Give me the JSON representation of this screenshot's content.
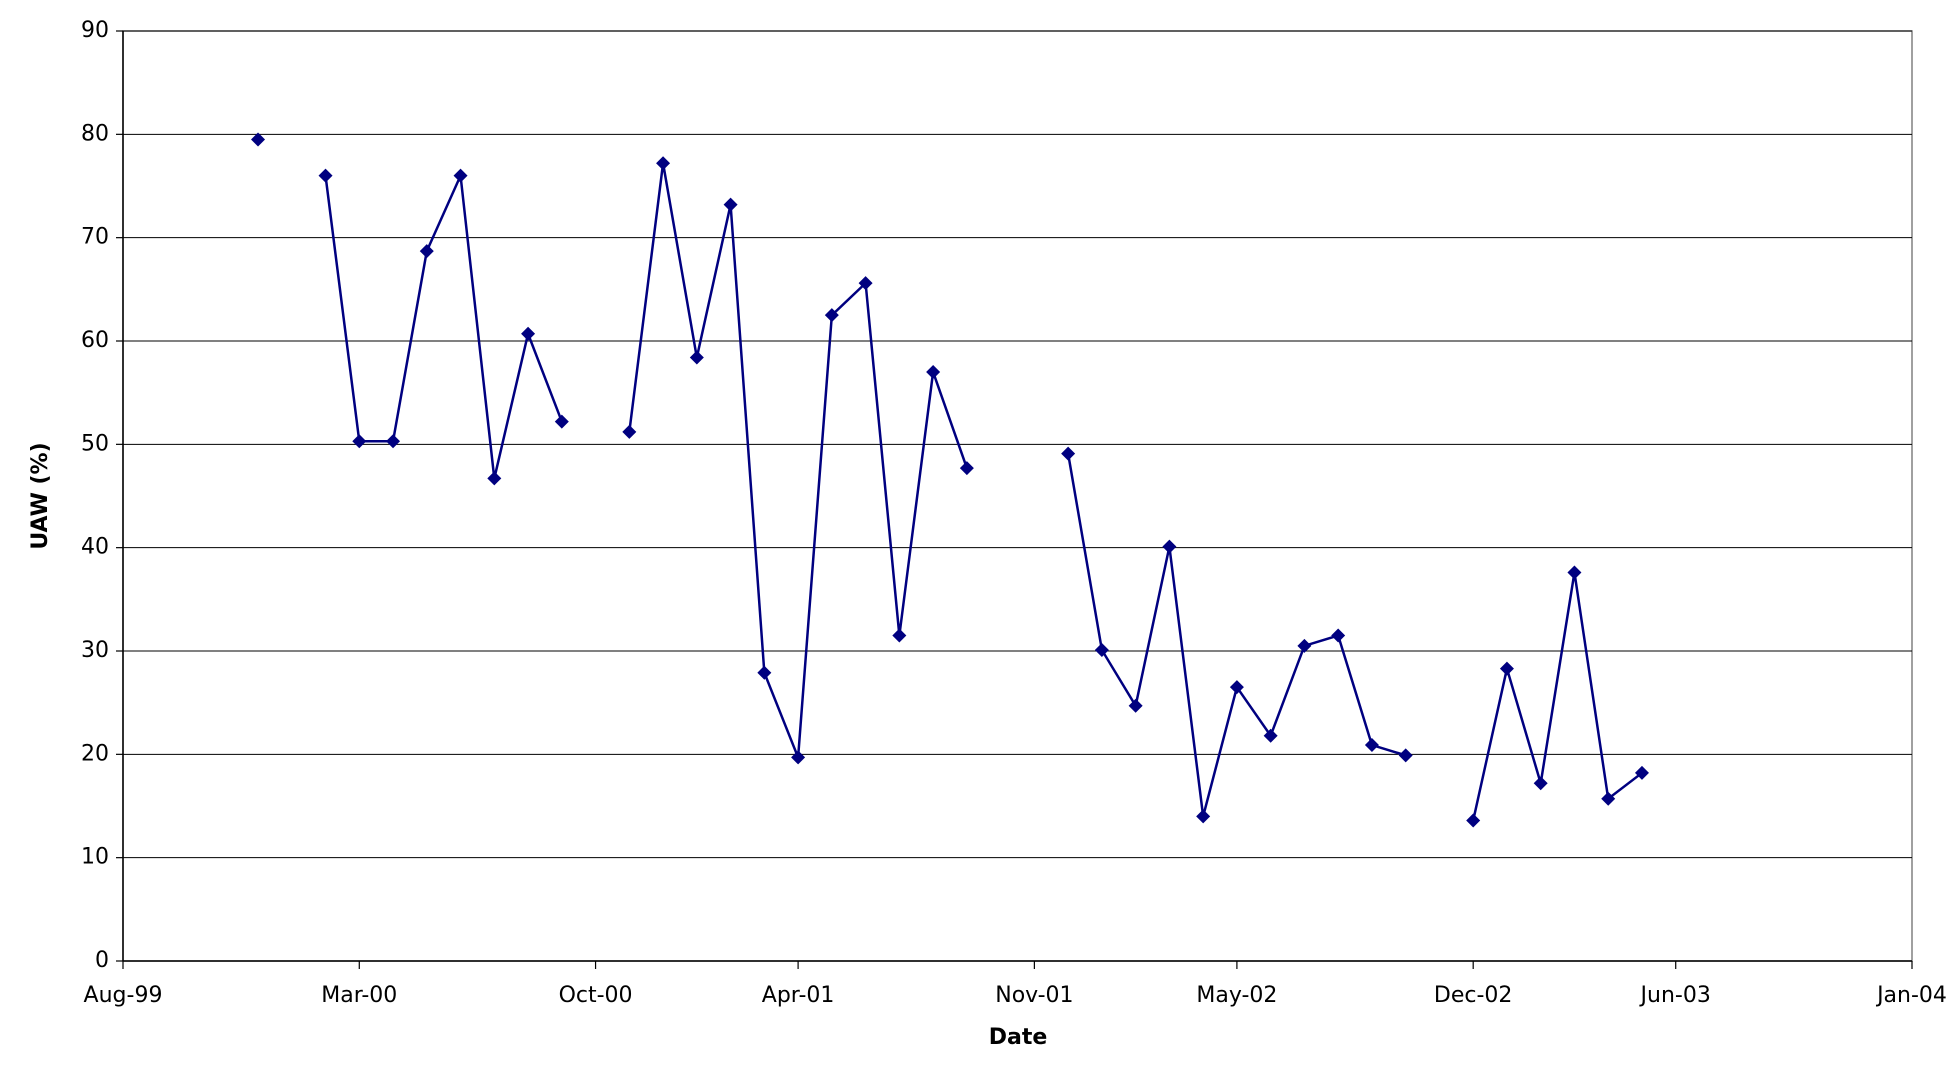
{
  "chart_data": {
    "type": "line",
    "x_label": "Date",
    "y_label": "UAW (%)",
    "x": [
      "1999-12",
      "2000-01",
      "2000-02",
      "2000-03",
      "2000-04",
      "2000-05",
      "2000-06",
      "2000-07",
      "2000-08",
      "2000-09",
      "2000-10",
      "2000-11",
      "2000-12",
      "2001-01",
      "2001-02",
      "2001-03",
      "2001-04",
      "2001-05",
      "2001-06",
      "2001-07",
      "2001-08",
      "2001-09",
      "2001-10",
      "2001-11",
      "2001-12",
      "2002-01",
      "2002-02",
      "2002-03",
      "2002-04",
      "2002-05",
      "2002-06",
      "2002-07",
      "2002-08",
      "2002-09",
      "2002-10",
      "2002-11",
      "2002-12",
      "2003-01",
      "2003-02",
      "2003-03",
      "2003-04",
      "2003-05"
    ],
    "values": [
      79.5,
      null,
      76,
      50.3,
      50.3,
      68.7,
      76,
      46.7,
      60.7,
      52.2,
      null,
      51.2,
      77.2,
      58.4,
      73.2,
      27.9,
      19.7,
      62.5,
      65.6,
      31.5,
      57,
      47.7,
      null,
      null,
      49.1,
      30.1,
      24.7,
      40.1,
      14,
      26.5,
      21.8,
      30.5,
      31.5,
      20.9,
      19.9,
      null,
      13.6,
      28.3,
      17.2,
      37.6,
      15.7,
      18.2
    ],
    "color": "#000080",
    "xlim": [
      "1999-08",
      "2004-01"
    ],
    "xticks": [
      {
        "value": "1999-08",
        "label": "Aug-99"
      },
      {
        "value": "2000-03",
        "label": "Mar-00"
      },
      {
        "value": "2000-10",
        "label": "Oct-00"
      },
      {
        "value": "2001-04",
        "label": "Apr-01"
      },
      {
        "value": "2001-11",
        "label": "Nov-01"
      },
      {
        "value": "2002-05",
        "label": "May-02"
      },
      {
        "value": "2002-12",
        "label": "Dec-02"
      },
      {
        "value": "2003-06",
        "label": "Jun-03"
      },
      {
        "value": "2004-01",
        "label": "Jan-04"
      }
    ],
    "ylim": [
      0,
      90
    ],
    "yticks": [
      0,
      10,
      20,
      30,
      40,
      50,
      60,
      70,
      80,
      90
    ],
    "grid": true,
    "marker": "diamond"
  }
}
